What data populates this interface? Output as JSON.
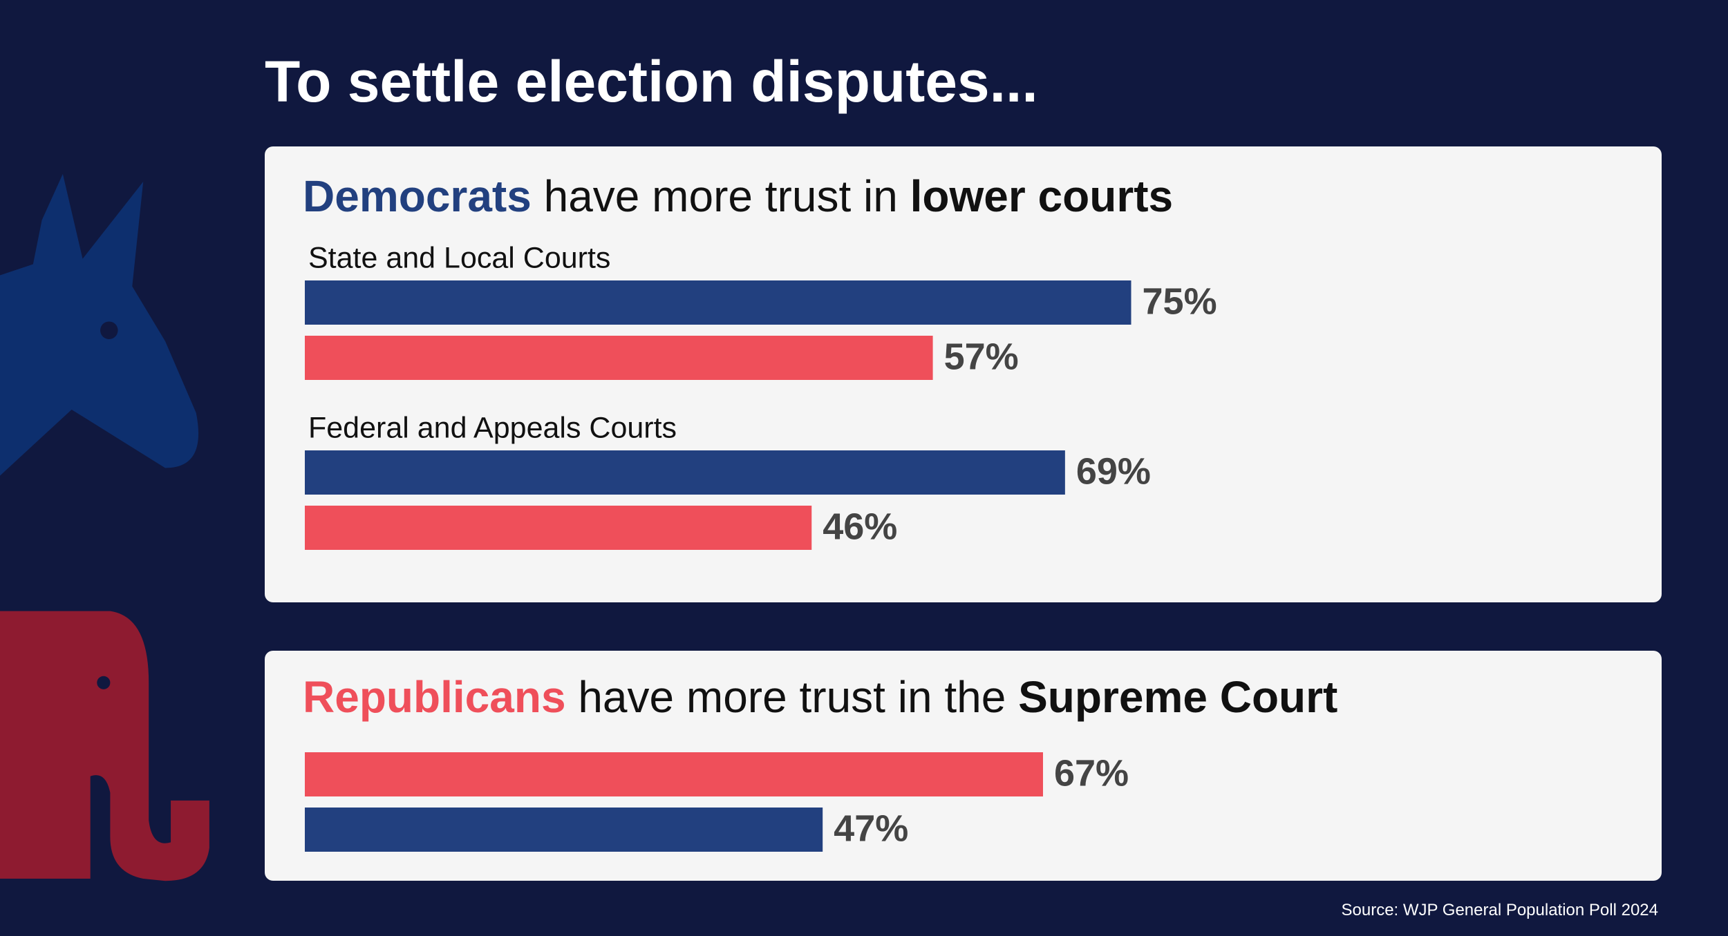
{
  "title": "To settle election disputes...",
  "source": "Source: WJP General Population Poll 2024",
  "chart_data": [
    {
      "type": "bar",
      "orientation": "horizontal",
      "title": [
        "Democrats",
        "have more trust in",
        "lower courts"
      ],
      "categories": [
        "State and Local Courts",
        "Federal and Appeals Courts"
      ],
      "xlim": [
        0,
        100
      ],
      "series": [
        {
          "color": "#22407f",
          "values": [
            75,
            69
          ],
          "value_labels": [
            "75%",
            "69%"
          ]
        },
        {
          "color": "#ef4f5a",
          "values": [
            57,
            46
          ],
          "value_labels": [
            "57%",
            "46%"
          ]
        }
      ]
    },
    {
      "type": "bar",
      "orientation": "horizontal",
      "title": [
        "Republicans",
        "have more trust in the",
        "Supreme Court"
      ],
      "categories": [
        null
      ],
      "xlim": [
        0,
        100
      ],
      "series": [
        {
          "color": "#ef4f5a",
          "values": [
            67
          ],
          "value_labels": [
            "67%"
          ]
        },
        {
          "color": "#22407f",
          "values": [
            47
          ],
          "value_labels": [
            "47%"
          ]
        }
      ]
    }
  ]
}
